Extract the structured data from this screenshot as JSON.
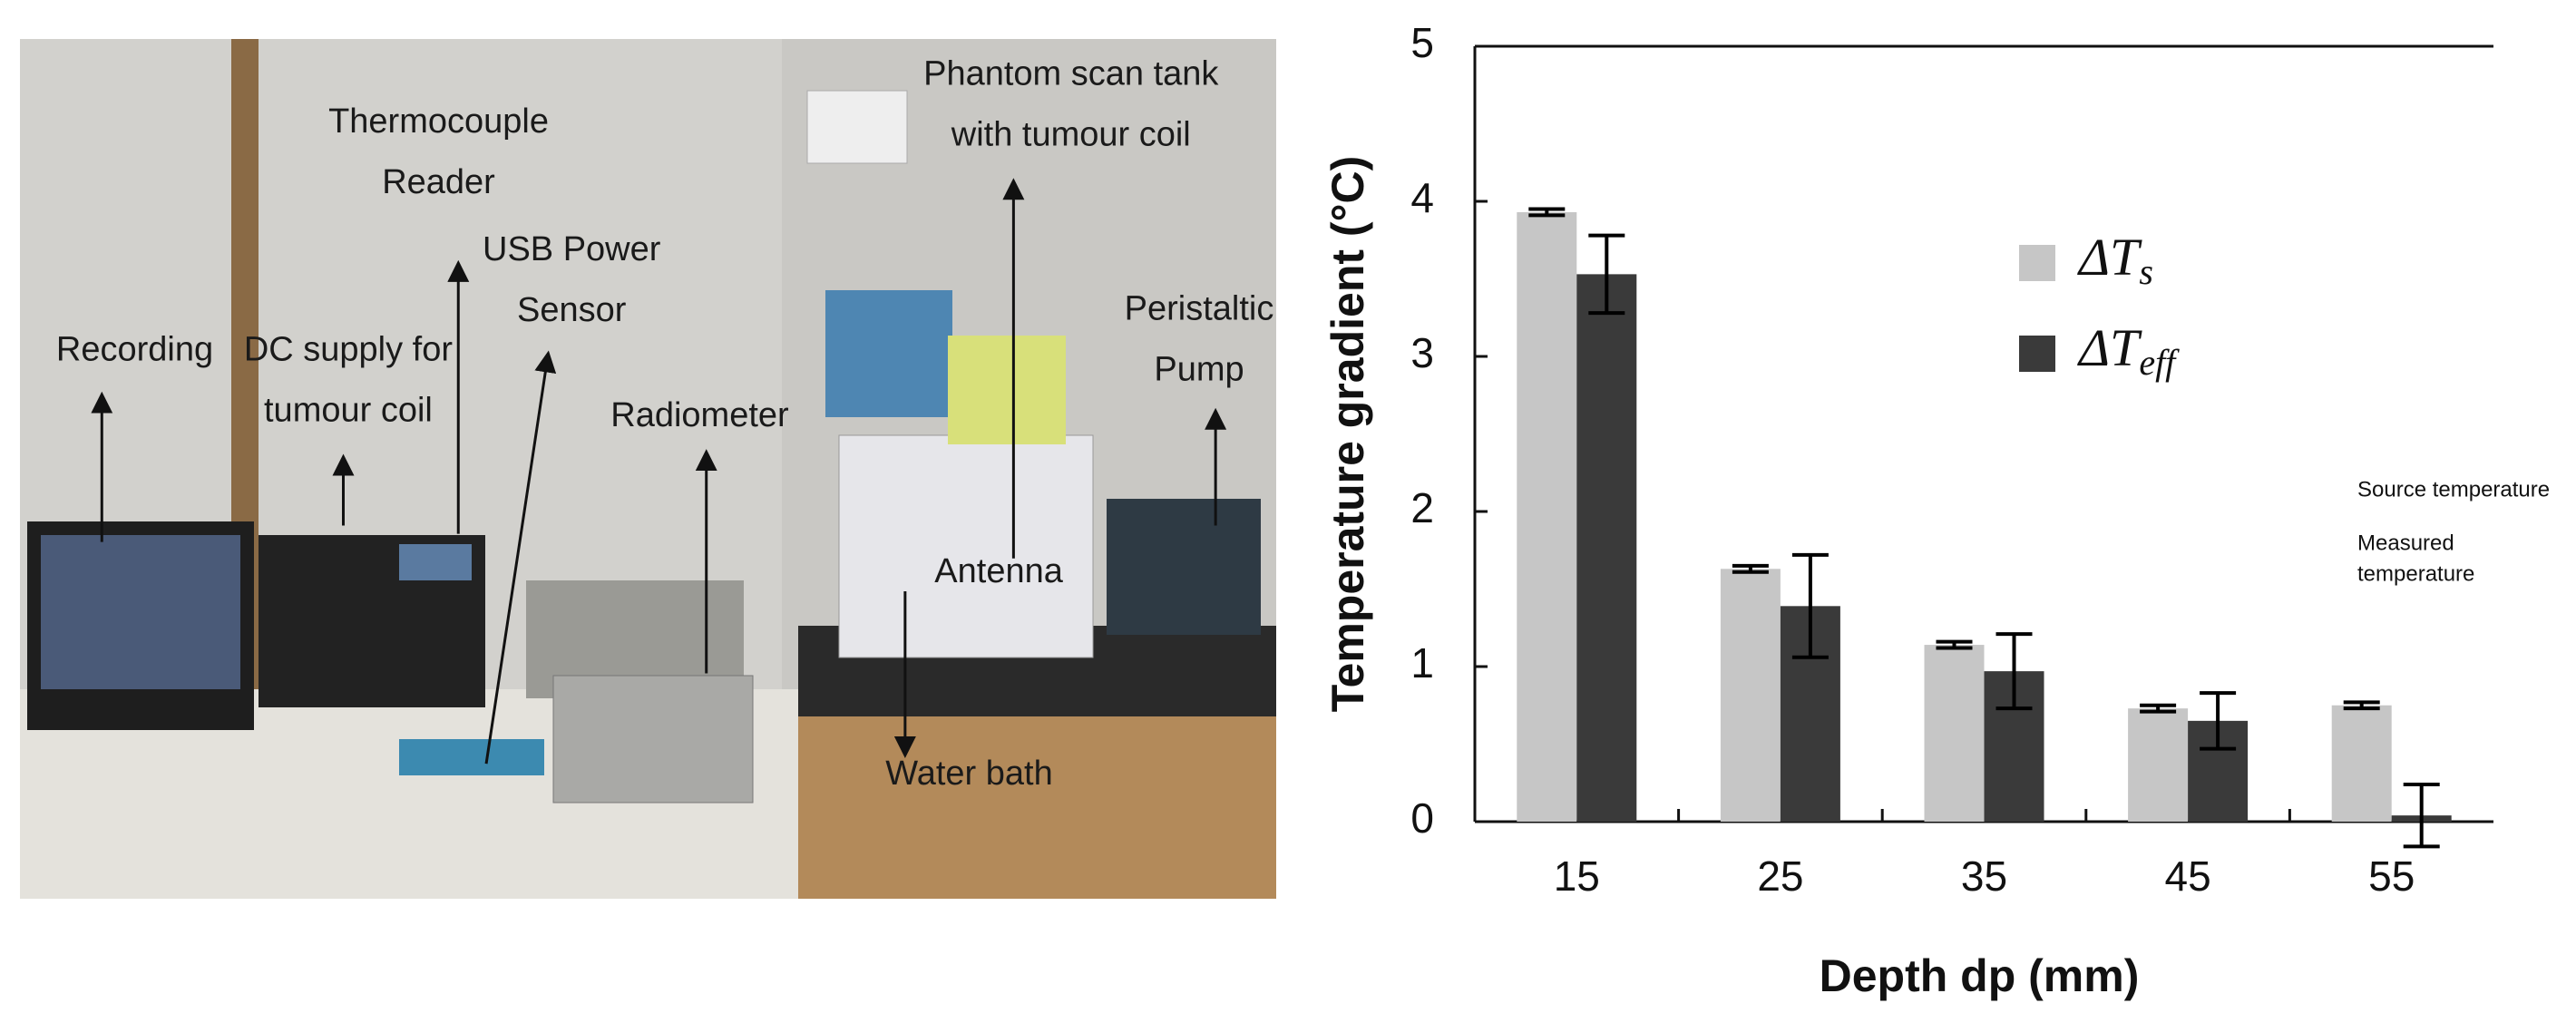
{
  "photo": {
    "labels": [
      {
        "lines": [
          "Recording"
        ]
      },
      {
        "lines": [
          "DC supply for",
          "tumour coil"
        ]
      },
      {
        "lines": [
          "Thermocouple",
          "Reader"
        ]
      },
      {
        "lines": [
          "USB Power",
          "Sensor"
        ]
      },
      {
        "lines": [
          "Radiometer"
        ]
      },
      {
        "lines": [
          "Phantom scan tank",
          "with tumour coil"
        ]
      },
      {
        "lines": [
          "Peristaltic",
          "Pump"
        ]
      },
      {
        "lines": [
          "Antenna"
        ]
      },
      {
        "lines": [
          "Water bath"
        ]
      }
    ]
  },
  "chart_data": {
    "type": "bar",
    "x_label": "Depth dp (mm)",
    "y_label": "Temperature gradient (°C)",
    "categories": [
      "15",
      "25",
      "35",
      "45",
      "55"
    ],
    "series": [
      {
        "name": "ΔTs",
        "color": "#c6c6c6",
        "values": [
          3.93,
          1.63,
          1.14,
          0.73,
          0.75
        ],
        "errors": [
          0.02,
          0.02,
          0.02,
          0.02,
          0.02
        ]
      },
      {
        "name": "ΔTeff",
        "color": "#3a3a3a",
        "values": [
          3.53,
          1.39,
          0.97,
          0.65,
          0.04
        ],
        "errors": [
          0.25,
          0.33,
          0.24,
          0.18,
          0.2
        ]
      }
    ],
    "ylim": [
      0,
      5
    ],
    "yticks": [
      0,
      1,
      2,
      3,
      4,
      5
    ],
    "annotations": [
      "Source temperature",
      "Measured",
      "temperature"
    ]
  }
}
